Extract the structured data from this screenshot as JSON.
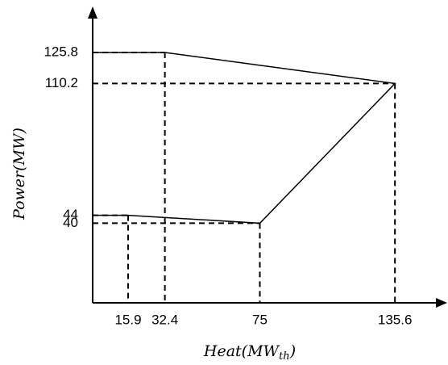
{
  "chart_data": {
    "type": "region",
    "x_label": [
      "Heat(MW",
      "th",
      ")"
    ],
    "y_label": "Power(MW)",
    "series": [
      {
        "x": [
          0,
          32.4,
          135.6,
          75,
          15.9,
          0
        ],
        "values": [
          125.8,
          125.8,
          110.2,
          40,
          44,
          44
        ],
        "color": "#000000"
      }
    ],
    "xlim": [
      0,
      150
    ],
    "ylim": [
      0,
      140
    ],
    "xticks": [
      15.9,
      32.4,
      75,
      135.6
    ],
    "yticks": [
      40,
      44,
      110.2,
      125.8
    ]
  }
}
